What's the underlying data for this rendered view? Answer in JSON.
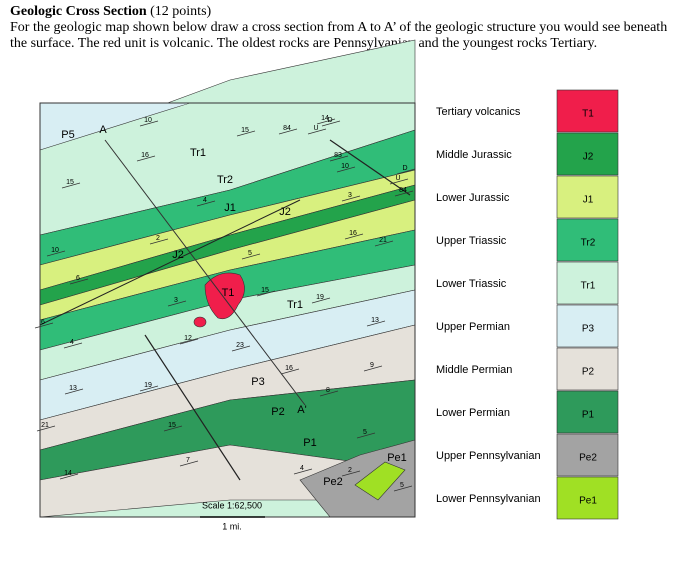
{
  "header": {
    "title": "Geologic Cross Section",
    "points": "(12 points)",
    "instructions": "For the geologic map shown below draw a cross section from A to A’ of the geologic structure you would see beneath the surface. The red unit is volcanic.  The oldest rocks are Pennsylvanian and the youngest rocks Tertiary."
  },
  "map": {
    "unit_labels": [
      "P5",
      "A",
      "Tr1",
      "Tr2",
      "J1",
      "J2",
      "J2",
      "T1",
      "Tr1",
      "P3",
      "P2",
      "A'",
      "P1",
      "Pe2",
      "Pe1"
    ],
    "dip_labels": [
      "10",
      "15",
      "84",
      "14",
      "D",
      "U",
      "16",
      "83",
      "10",
      "D",
      "U",
      "84",
      "15",
      "3",
      "16",
      "21",
      "5",
      "2",
      "10",
      "6",
      "4",
      "3",
      "15",
      "19",
      "12",
      "23",
      "13",
      "4",
      "16",
      "9",
      "8",
      "19",
      "13",
      "21",
      "15",
      "5",
      "7",
      "4",
      "2",
      "14",
      "5",
      "6"
    ],
    "scale": "Scale 1:62,500",
    "scale_unit": "1 mi."
  },
  "legend": [
    {
      "name": "Tertiary volcanics",
      "code": "T1"
    },
    {
      "name": "Middle Jurassic",
      "code": "J2"
    },
    {
      "name": "Lower Jurassic",
      "code": "J1"
    },
    {
      "name": "Upper Triassic",
      "code": "Tr2"
    },
    {
      "name": "Lower Triassic",
      "code": "Tr1"
    },
    {
      "name": "Upper Permian",
      "code": "P3"
    },
    {
      "name": "Middle Permian",
      "code": "P2"
    },
    {
      "name": "Lower Permian",
      "code": "P1"
    },
    {
      "name": "Upper Pennsylvanian",
      "code": "Pe2"
    },
    {
      "name": "Lower Pennsylvanian",
      "code": "Pe1"
    }
  ]
}
